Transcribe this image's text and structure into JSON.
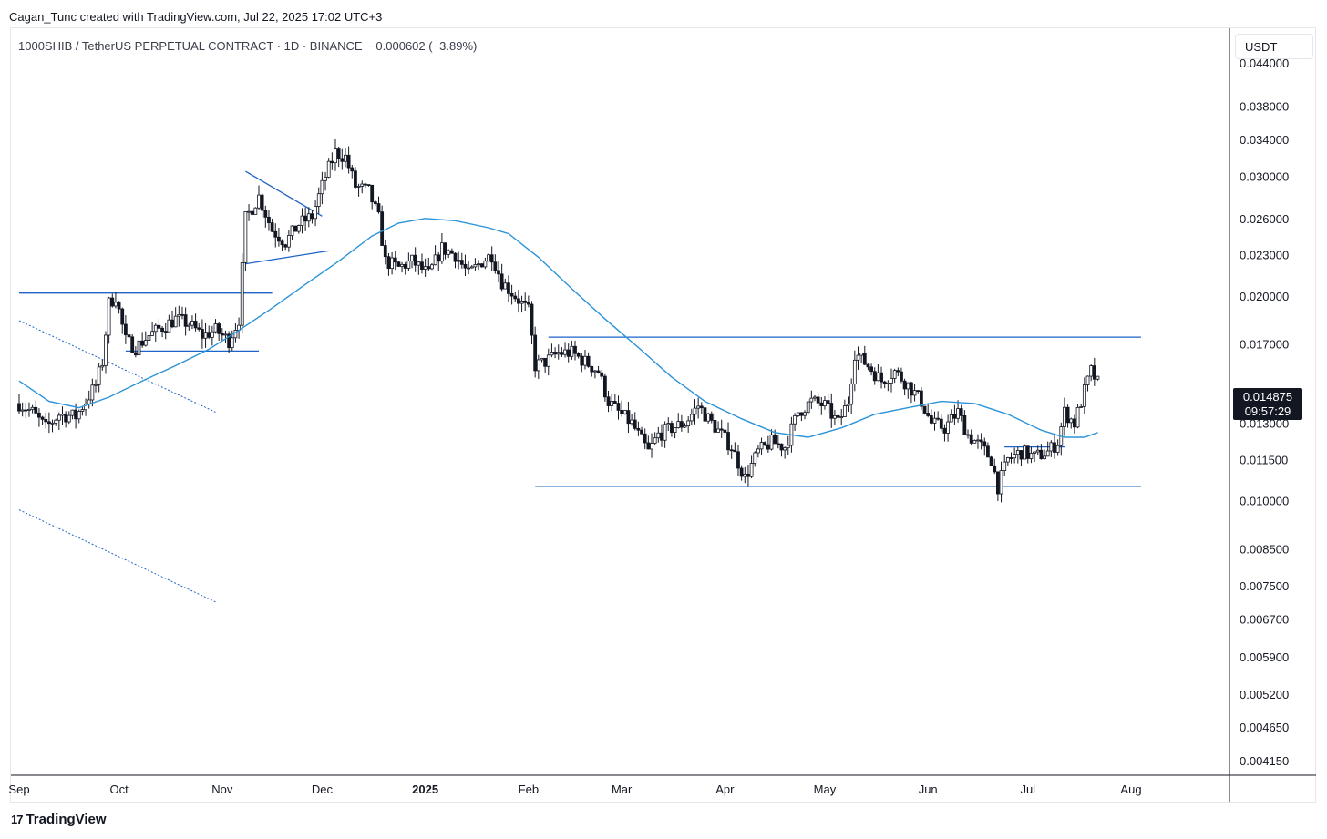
{
  "credit": "Cagan_Tunc created with TradingView.com, Jul 22, 2025 17:02 UTC+3",
  "legend": {
    "symbol": "1000SHIB / TetherUS PERPETUAL CONTRACT · 1D · BINANCE",
    "change": "−0.000602 (−3.89%)"
  },
  "unit": "USDT",
  "last_price": {
    "value": "0.014875",
    "countdown": "09:57:29"
  },
  "footer_logo": "TradingView",
  "logo_mark": "17",
  "colors": {
    "up": "#ffffff",
    "down": "#131722",
    "line": "#1e63c8",
    "ma": "#2b93d8"
  },
  "chart_data": {
    "type": "candlestick",
    "scale": "log",
    "ylim": [
      0.00395,
      0.0495
    ],
    "y_ticks": [
      "0.044000",
      "0.038000",
      "0.034000",
      "0.030000",
      "0.026000",
      "0.023000",
      "0.020000",
      "0.017000",
      "0.013000",
      "0.011500",
      "0.010000",
      "0.008500",
      "0.007500",
      "0.006700",
      "0.005900",
      "0.005200",
      "0.004650",
      "0.004150"
    ],
    "x_ticks": [
      {
        "label": "Sep",
        "date": "2024-09-01"
      },
      {
        "label": "Oct",
        "date": "2024-10-01"
      },
      {
        "label": "Nov",
        "date": "2024-11-01"
      },
      {
        "label": "Dec",
        "date": "2024-12-01"
      },
      {
        "label": "2025",
        "date": "2025-01-01",
        "bold": true
      },
      {
        "label": "Feb",
        "date": "2025-02-01"
      },
      {
        "label": "Mar",
        "date": "2025-03-01"
      },
      {
        "label": "Apr",
        "date": "2025-04-01"
      },
      {
        "label": "May",
        "date": "2025-05-01"
      },
      {
        "label": "Jun",
        "date": "2025-06-01"
      },
      {
        "label": "Jul",
        "date": "2025-07-01"
      },
      {
        "label": "Aug",
        "date": "2025-08-01"
      }
    ],
    "price_path": [
      [
        "2024-09-01",
        0.0139
      ],
      [
        "2024-09-05",
        0.0135
      ],
      [
        "2024-09-09",
        0.0128
      ],
      [
        "2024-09-13",
        0.0134
      ],
      [
        "2024-09-18",
        0.0133
      ],
      [
        "2024-09-21",
        0.014
      ],
      [
        "2024-09-24",
        0.0148
      ],
      [
        "2024-09-26",
        0.016
      ],
      [
        "2024-09-28",
        0.0195
      ],
      [
        "2024-09-30",
        0.02
      ],
      [
        "2024-10-03",
        0.0172
      ],
      [
        "2024-10-06",
        0.0168
      ],
      [
        "2024-10-10",
        0.0175
      ],
      [
        "2024-10-14",
        0.018
      ],
      [
        "2024-10-18",
        0.0185
      ],
      [
        "2024-10-22",
        0.0182
      ],
      [
        "2024-10-26",
        0.0175
      ],
      [
        "2024-10-30",
        0.0178
      ],
      [
        "2024-11-03",
        0.0172
      ],
      [
        "2024-11-06",
        0.0185
      ],
      [
        "2024-11-08",
        0.026
      ],
      [
        "2024-11-12",
        0.028
      ],
      [
        "2024-11-16",
        0.025
      ],
      [
        "2024-11-20",
        0.024
      ],
      [
        "2024-11-24",
        0.0255
      ],
      [
        "2024-11-28",
        0.0262
      ],
      [
        "2024-12-02",
        0.03
      ],
      [
        "2024-12-05",
        0.0325
      ],
      [
        "2024-12-08",
        0.032
      ],
      [
        "2024-12-11",
        0.029
      ],
      [
        "2024-12-15",
        0.0285
      ],
      [
        "2024-12-18",
        0.026
      ],
      [
        "2024-12-20",
        0.0225
      ],
      [
        "2024-12-24",
        0.022
      ],
      [
        "2024-12-28",
        0.0225
      ],
      [
        "2025-01-02",
        0.0215
      ],
      [
        "2025-01-06",
        0.0235
      ],
      [
        "2025-01-10",
        0.023
      ],
      [
        "2025-01-14",
        0.0215
      ],
      [
        "2025-01-18",
        0.0225
      ],
      [
        "2025-01-21",
        0.023
      ],
      [
        "2025-01-24",
        0.021
      ],
      [
        "2025-01-28",
        0.02
      ],
      [
        "2025-02-01",
        0.019
      ],
      [
        "2025-02-03",
        0.0158
      ],
      [
        "2025-02-06",
        0.016
      ],
      [
        "2025-02-10",
        0.0165
      ],
      [
        "2025-02-14",
        0.0165
      ],
      [
        "2025-02-18",
        0.016
      ],
      [
        "2025-02-22",
        0.0155
      ],
      [
        "2025-02-25",
        0.014
      ],
      [
        "2025-02-28",
        0.0135
      ],
      [
        "2025-03-04",
        0.013
      ],
      [
        "2025-03-09",
        0.0118
      ],
      [
        "2025-03-12",
        0.0125
      ],
      [
        "2025-03-16",
        0.0128
      ],
      [
        "2025-03-20",
        0.013
      ],
      [
        "2025-03-24",
        0.0138
      ],
      [
        "2025-03-27",
        0.0132
      ],
      [
        "2025-03-31",
        0.0125
      ],
      [
        "2025-04-03",
        0.012
      ],
      [
        "2025-04-07",
        0.0108
      ],
      [
        "2025-04-11",
        0.0118
      ],
      [
        "2025-04-15",
        0.0122
      ],
      [
        "2025-04-19",
        0.012
      ],
      [
        "2025-04-23",
        0.0135
      ],
      [
        "2025-04-27",
        0.014
      ],
      [
        "2025-05-01",
        0.0138
      ],
      [
        "2025-05-05",
        0.013
      ],
      [
        "2025-05-08",
        0.014
      ],
      [
        "2025-05-10",
        0.0165
      ],
      [
        "2025-05-14",
        0.0158
      ],
      [
        "2025-05-18",
        0.015
      ],
      [
        "2025-05-22",
        0.0155
      ],
      [
        "2025-05-26",
        0.0148
      ],
      [
        "2025-05-30",
        0.014
      ],
      [
        "2025-06-02",
        0.013
      ],
      [
        "2025-06-06",
        0.0128
      ],
      [
        "2025-06-10",
        0.0135
      ],
      [
        "2025-06-13",
        0.0125
      ],
      [
        "2025-06-17",
        0.012
      ],
      [
        "2025-06-20",
        0.0115
      ],
      [
        "2025-06-22",
        0.0105
      ],
      [
        "2025-06-25",
        0.0115
      ],
      [
        "2025-06-29",
        0.0118
      ],
      [
        "2025-07-03",
        0.0116
      ],
      [
        "2025-07-07",
        0.0118
      ],
      [
        "2025-07-10",
        0.0122
      ],
      [
        "2025-07-12",
        0.0135
      ],
      [
        "2025-07-15",
        0.013
      ],
      [
        "2025-07-18",
        0.0145
      ],
      [
        "2025-07-20",
        0.0155
      ],
      [
        "2025-07-22",
        0.0149
      ]
    ],
    "moving_average": [
      [
        "2024-09-01",
        0.015
      ],
      [
        "2024-09-10",
        0.014
      ],
      [
        "2024-09-19",
        0.0137
      ],
      [
        "2024-09-28",
        0.0142
      ],
      [
        "2024-10-08",
        0.015
      ],
      [
        "2024-10-18",
        0.0158
      ],
      [
        "2024-10-28",
        0.0167
      ],
      [
        "2024-11-06",
        0.0178
      ],
      [
        "2024-11-16",
        0.0192
      ],
      [
        "2024-11-26",
        0.0208
      ],
      [
        "2024-12-06",
        0.0225
      ],
      [
        "2024-12-16",
        0.0245
      ],
      [
        "2024-12-24",
        0.0256
      ],
      [
        "2025-01-01",
        0.026
      ],
      [
        "2025-01-10",
        0.0258
      ],
      [
        "2025-01-20",
        0.0252
      ],
      [
        "2025-01-26",
        0.0247
      ],
      [
        "2025-02-04",
        0.0228
      ],
      [
        "2025-02-14",
        0.0205
      ],
      [
        "2025-02-24",
        0.0185
      ],
      [
        "2025-03-06",
        0.0168
      ],
      [
        "2025-03-16",
        0.0152
      ],
      [
        "2025-03-26",
        0.014
      ],
      [
        "2025-04-06",
        0.0132
      ],
      [
        "2025-04-16",
        0.0126
      ],
      [
        "2025-04-26",
        0.0124
      ],
      [
        "2025-05-06",
        0.0128
      ],
      [
        "2025-05-16",
        0.0134
      ],
      [
        "2025-05-26",
        0.0137
      ],
      [
        "2025-06-05",
        0.014
      ],
      [
        "2025-06-15",
        0.0139
      ],
      [
        "2025-06-25",
        0.0134
      ],
      [
        "2025-07-05",
        0.0127
      ],
      [
        "2025-07-12",
        0.0124
      ],
      [
        "2025-07-18",
        0.0124
      ],
      [
        "2025-07-22",
        0.0126
      ]
    ],
    "trendlines": [
      {
        "from": [
          "2024-09-01",
          0.0202
        ],
        "to": [
          "2024-11-16",
          0.0202
        ],
        "style": "solid"
      },
      {
        "from": [
          "2024-10-03",
          0.0166
        ],
        "to": [
          "2024-11-12",
          0.0166
        ],
        "style": "solid"
      },
      {
        "from": [
          "2024-11-08",
          0.0305
        ],
        "to": [
          "2024-12-01",
          0.0262
        ],
        "style": "solid"
      },
      {
        "from": [
          "2024-11-08",
          0.0223
        ],
        "to": [
          "2024-12-03",
          0.0233
        ],
        "style": "solid"
      },
      {
        "from": [
          "2025-02-07",
          0.0174
        ],
        "to": [
          "2025-08-04",
          0.0174
        ],
        "style": "solid"
      },
      {
        "from": [
          "2025-02-03",
          0.0105
        ],
        "to": [
          "2025-08-04",
          0.0105
        ],
        "style": "solid"
      },
      {
        "from": [
          "2025-06-24",
          0.012
        ],
        "to": [
          "2025-07-12",
          0.012
        ],
        "style": "solid"
      },
      {
        "from": [
          "2024-09-01",
          0.0184
        ],
        "to": [
          "2024-10-30",
          0.0135
        ],
        "style": "dotted"
      },
      {
        "from": [
          "2024-09-01",
          0.0097
        ],
        "to": [
          "2024-10-30",
          0.0071
        ],
        "style": "dotted"
      }
    ]
  }
}
